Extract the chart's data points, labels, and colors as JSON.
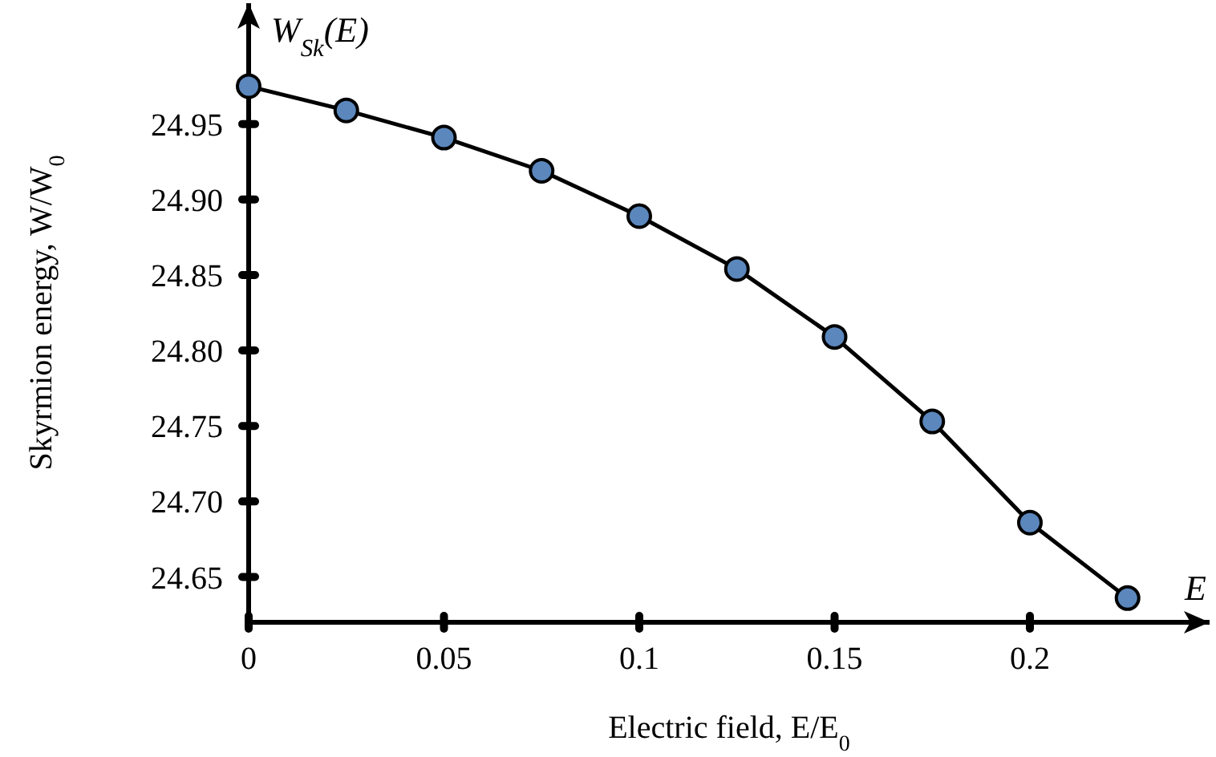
{
  "chart_data": {
    "type": "line",
    "xlabel": "Electric field, E/E$_{0}$",
    "ylabel": "Skyrmion energy, W/W$_{0}$",
    "annotations": [
      "W$_{Sk}$(E)",
      "E"
    ],
    "x": [
      0,
      0.025,
      0.05,
      0.075,
      0.1,
      0.125,
      0.15,
      0.175,
      0.2,
      0.225
    ],
    "series": [
      {
        "color": "#5b87bd",
        "values": [
          24.975,
          24.959,
          24.941,
          24.919,
          24.889,
          24.854,
          24.809,
          24.753,
          24.686,
          24.636
        ]
      }
    ],
    "marker": "circle",
    "line_style": "solid",
    "grid": false,
    "xlim": [
      0,
      0.246
    ],
    "ylim": [
      24.62,
      25.03
    ],
    "xticks": [
      0,
      0.05,
      0.1,
      0.15,
      0.2
    ],
    "yticks": [
      24.65,
      {
        "value": 24.7,
        "label": "24.70"
      },
      24.75,
      {
        "value": 24.8,
        "label": "24.80"
      },
      24.85,
      {
        "value": 24.9,
        "label": "24.90"
      },
      24.95
    ]
  }
}
